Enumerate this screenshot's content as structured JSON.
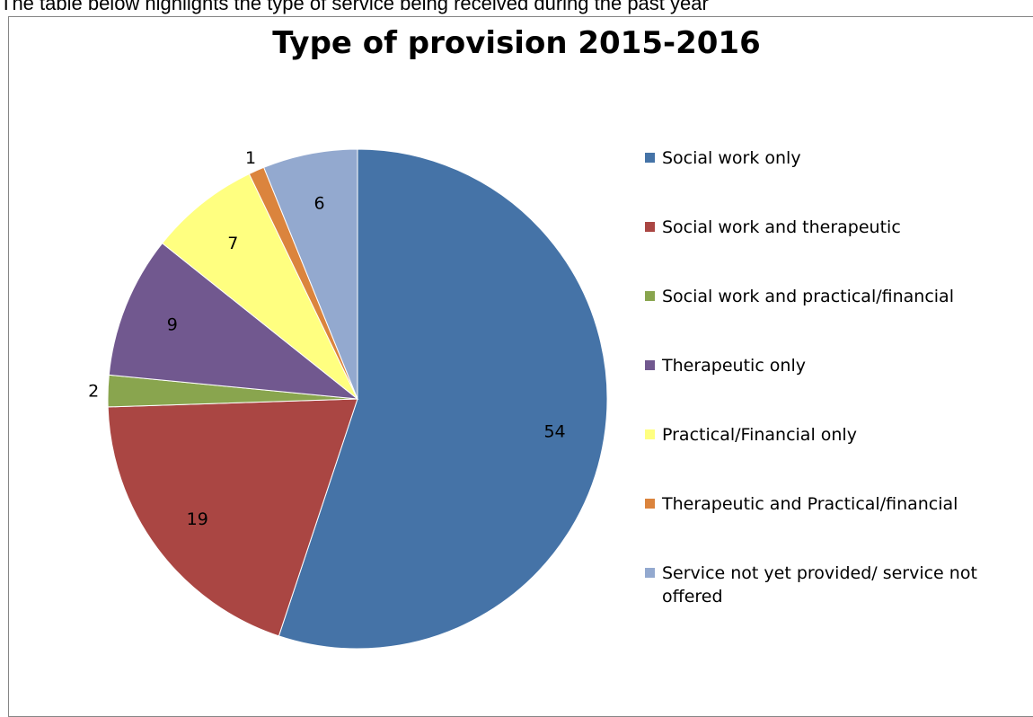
{
  "document": {
    "intro_text": "The table below highlights the type of service being received during the past year"
  },
  "chart_data": {
    "type": "pie",
    "title": "Type of provision 2015-2016",
    "legend_position": "right",
    "start_angle": "12 o'clock, clockwise",
    "slices": [
      {
        "label": "Social work only",
        "value": 54,
        "color": "#4573a7"
      },
      {
        "label": "Social work and therapeutic",
        "value": 19,
        "color": "#aa4643"
      },
      {
        "label": "Social work and practical/financial",
        "value": 2,
        "color": "#89a54e"
      },
      {
        "label": "Therapeutic  only",
        "value": 9,
        "color": "#71588f"
      },
      {
        "label": "Practical/Financial  only",
        "value": 7,
        "color": "#ffff80"
      },
      {
        "label": "Therapeutic  and Practical/financial",
        "value": 1,
        "color": "#db843d"
      },
      {
        "label": "Service not yet provided/ service not offered",
        "value": 6,
        "color": "#93a9cf"
      }
    ]
  }
}
